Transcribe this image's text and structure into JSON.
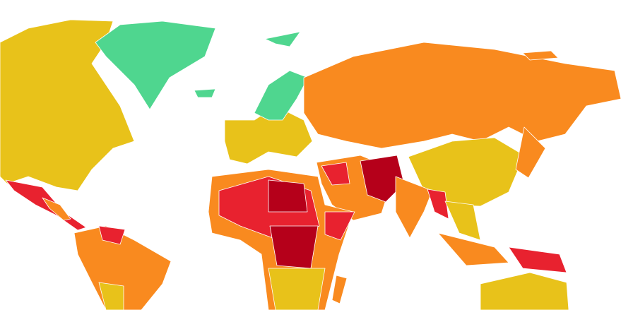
{
  "map": {
    "background": "#ffffff",
    "colors": {
      "level_1": "#4fd68f",
      "level_2": "#e8c21a",
      "level_3": "#f98a1f",
      "level_4": "#e8222f",
      "level_5": "#b5001a"
    }
  }
}
